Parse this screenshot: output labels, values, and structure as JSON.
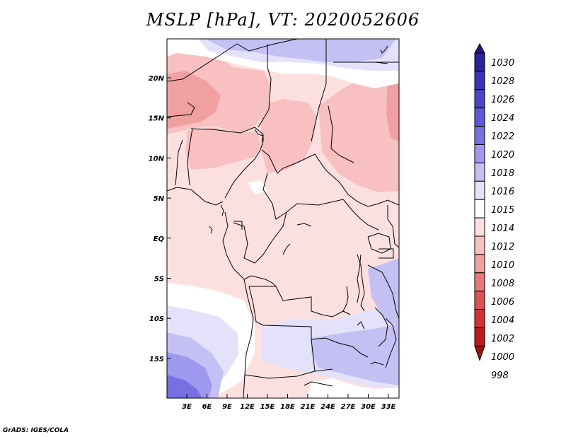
{
  "title": "MSLP [hPa], VT: 2020052606",
  "credit": "GrADS: IGES/COLA",
  "lat_ticks": [
    "20N",
    "15N",
    "10N",
    "5N",
    "EQ",
    "5S",
    "10S",
    "15S"
  ],
  "lon_ticks": [
    "3E",
    "6E",
    "9E",
    "12E",
    "15E",
    "18E",
    "21E",
    "24E",
    "27E",
    "30E",
    "33E"
  ],
  "colorbar": {
    "labels": [
      "1030",
      "1028",
      "1026",
      "1024",
      "1022",
      "1020",
      "1018",
      "1016",
      "1015",
      "1014",
      "1012",
      "1010",
      "1008",
      "1006",
      "1004",
      "1002",
      "1000",
      "998"
    ],
    "colors": [
      "#201888",
      "#2a22a4",
      "#3a32c0",
      "#4a44d0",
      "#5e58dc",
      "#7670e2",
      "#9e98ee",
      "#c4c0f4",
      "#e4e2fa",
      "#ffffff",
      "#fce0e0",
      "#f8c0c0",
      "#f0a0a0",
      "#e87878",
      "#e05050",
      "#d83030",
      "#c01818",
      "#a01010"
    ]
  },
  "map_colors": {
    "pale_pink": "#fce0e0",
    "pink": "#f8c0c0",
    "deep_pink": "#f0a0a0",
    "white": "#ffffff",
    "pale_blue": "#e4e2fa",
    "light_blue": "#c4c0f4",
    "blue": "#9e98ee",
    "deep_blue": "#7670e2"
  }
}
